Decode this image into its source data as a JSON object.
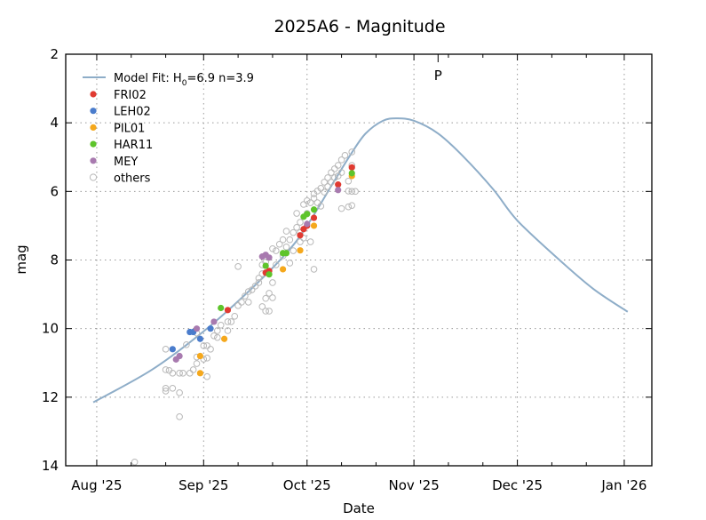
{
  "chart_data": {
    "type": "scatter",
    "title": "2025A6 - Magnitude",
    "xlabel": "Date",
    "ylabel": "mag",
    "xlim": [
      "2025-07-23",
      "2026-01-09"
    ],
    "ylim": [
      14,
      2
    ],
    "y_inverted": true,
    "grid": true,
    "legend_position": "top-left",
    "x_ticks": [
      {
        "date": "2025-08-01",
        "label": "Aug '25"
      },
      {
        "date": "2025-09-01",
        "label": "Sep '25"
      },
      {
        "date": "2025-10-01",
        "label": "Oct '25"
      },
      {
        "date": "2025-11-01",
        "label": "Nov '25"
      },
      {
        "date": "2025-12-01",
        "label": "Dec '25"
      },
      {
        "date": "2026-01-01",
        "label": "Jan '26"
      }
    ],
    "y_ticks": [
      {
        "value": 2,
        "label": "2"
      },
      {
        "value": 4,
        "label": "4"
      },
      {
        "value": 6,
        "label": "6"
      },
      {
        "value": 8,
        "label": "8"
      },
      {
        "value": 10,
        "label": "10"
      },
      {
        "value": 12,
        "label": "12"
      },
      {
        "value": 14,
        "label": "14"
      }
    ],
    "perihelion": {
      "date": "2025-11-08",
      "label": "P"
    },
    "model": {
      "label_prefix": "Model Fit: H",
      "label_sub": "0",
      "label_suffix": "=6.9 n=3.9",
      "color": "#8eadc8",
      "points": [
        [
          "2025-07-31",
          12.15
        ],
        [
          "2025-08-17",
          11.2
        ],
        [
          "2025-09-01",
          10.08
        ],
        [
          "2025-09-14",
          8.92
        ],
        [
          "2025-09-25",
          7.8
        ],
        [
          "2025-10-01",
          7.0
        ],
        [
          "2025-10-09",
          5.68
        ],
        [
          "2025-10-14",
          4.87
        ],
        [
          "2025-10-18",
          4.31
        ],
        [
          "2025-10-23",
          3.94
        ],
        [
          "2025-10-27",
          3.87
        ],
        [
          "2025-11-01",
          3.94
        ],
        [
          "2025-11-08",
          4.31
        ],
        [
          "2025-11-15",
          4.95
        ],
        [
          "2025-11-24",
          5.94
        ],
        [
          "2025-12-01",
          6.85
        ],
        [
          "2025-12-13",
          7.98
        ],
        [
          "2025-12-23",
          8.84
        ],
        [
          "2026-01-02",
          9.51
        ]
      ]
    },
    "series": [
      {
        "name": "FRI02",
        "color": "#e03a31",
        "filled": true,
        "points": [
          [
            "2025-09-08",
            9.46
          ],
          [
            "2025-09-19",
            8.37
          ],
          [
            "2025-09-20",
            8.32
          ],
          [
            "2025-09-29",
            7.28
          ],
          [
            "2025-09-30",
            7.1
          ],
          [
            "2025-10-01",
            7.0
          ],
          [
            "2025-10-03",
            6.77
          ],
          [
            "2025-10-10",
            5.8
          ],
          [
            "2025-10-14",
            5.3
          ]
        ]
      },
      {
        "name": "LEH02",
        "color": "#4a7ccc",
        "filled": true,
        "points": [
          [
            "2025-08-23",
            10.6
          ],
          [
            "2025-08-28",
            10.1
          ],
          [
            "2025-08-29",
            10.1
          ],
          [
            "2025-08-31",
            10.3
          ],
          [
            "2025-09-03",
            10.0
          ]
        ]
      },
      {
        "name": "PIL01",
        "color": "#f5a81c",
        "filled": true,
        "points": [
          [
            "2025-08-31",
            11.3
          ],
          [
            "2025-08-31",
            10.8
          ],
          [
            "2025-09-07",
            10.3
          ],
          [
            "2025-09-24",
            8.27
          ],
          [
            "2025-09-29",
            7.72
          ],
          [
            "2025-10-03",
            7.0
          ],
          [
            "2025-10-14",
            5.55
          ]
        ]
      },
      {
        "name": "HAR11",
        "color": "#5ec42b",
        "filled": true,
        "points": [
          [
            "2025-09-06",
            9.4
          ],
          [
            "2025-09-19",
            8.17
          ],
          [
            "2025-09-20",
            8.42
          ],
          [
            "2025-09-24",
            7.8
          ],
          [
            "2025-09-25",
            7.8
          ],
          [
            "2025-09-30",
            6.74
          ],
          [
            "2025-10-01",
            6.66
          ],
          [
            "2025-10-03",
            6.53
          ],
          [
            "2025-10-14",
            5.47
          ]
        ]
      },
      {
        "name": "MEY",
        "color": "#a87aaf",
        "filled": true,
        "points": [
          [
            "2025-08-24",
            10.9
          ],
          [
            "2025-08-25",
            10.8
          ],
          [
            "2025-08-30",
            10.0
          ],
          [
            "2025-09-04",
            9.8
          ],
          [
            "2025-09-18",
            7.9
          ],
          [
            "2025-09-19",
            7.85
          ],
          [
            "2025-09-20",
            7.93
          ],
          [
            "2025-10-01",
            6.95
          ],
          [
            "2025-10-10",
            5.96
          ]
        ]
      },
      {
        "name": "others",
        "color": "#b8b8b8",
        "filled": false,
        "points": [
          [
            "2025-08-12",
            13.89
          ],
          [
            "2025-08-21",
            10.6
          ],
          [
            "2025-08-21",
            11.2
          ],
          [
            "2025-08-21",
            11.74
          ],
          [
            "2025-08-21",
            11.82
          ],
          [
            "2025-08-22",
            11.22
          ],
          [
            "2025-08-23",
            11.3
          ],
          [
            "2025-08-23",
            11.74
          ],
          [
            "2025-08-25",
            11.3
          ],
          [
            "2025-08-25",
            11.87
          ],
          [
            "2025-08-25",
            12.57
          ],
          [
            "2025-08-26",
            11.3
          ],
          [
            "2025-08-27",
            10.47
          ],
          [
            "2025-08-28",
            11.3
          ],
          [
            "2025-08-29",
            11.2
          ],
          [
            "2025-08-30",
            10.83
          ],
          [
            "2025-08-30",
            11.02
          ],
          [
            "2025-08-30",
            10.13
          ],
          [
            "2025-09-01",
            10.89
          ],
          [
            "2025-09-01",
            10.5
          ],
          [
            "2025-09-02",
            10.86
          ],
          [
            "2025-09-02",
            10.5
          ],
          [
            "2025-09-02",
            11.4
          ],
          [
            "2025-09-03",
            10.6
          ],
          [
            "2025-09-04",
            10.21
          ],
          [
            "2025-09-05",
            10.06
          ],
          [
            "2025-09-05",
            10.26
          ],
          [
            "2025-09-06",
            9.9
          ],
          [
            "2025-09-08",
            9.8
          ],
          [
            "2025-09-08",
            10.06
          ],
          [
            "2025-09-09",
            9.8
          ],
          [
            "2025-09-10",
            9.64
          ],
          [
            "2025-09-11",
            9.33
          ],
          [
            "2025-09-11",
            8.19
          ],
          [
            "2025-09-12",
            9.23
          ],
          [
            "2025-09-13",
            9.05
          ],
          [
            "2025-09-14",
            9.23
          ],
          [
            "2025-09-14",
            8.92
          ],
          [
            "2025-09-15",
            8.87
          ],
          [
            "2025-09-16",
            8.76
          ],
          [
            "2025-09-17",
            8.53
          ],
          [
            "2025-09-17",
            8.66
          ],
          [
            "2025-09-18",
            8.4
          ],
          [
            "2025-09-18",
            8.14
          ],
          [
            "2025-09-18",
            9.36
          ],
          [
            "2025-09-19",
            8.06
          ],
          [
            "2025-09-19",
            9.49
          ],
          [
            "2025-09-19",
            9.12
          ],
          [
            "2025-09-20",
            9.49
          ],
          [
            "2025-09-20",
            8.97
          ],
          [
            "2025-09-21",
            7.67
          ],
          [
            "2025-09-21",
            9.1
          ],
          [
            "2025-09-21",
            8.66
          ],
          [
            "2025-09-22",
            7.73
          ],
          [
            "2025-09-22",
            8.14
          ],
          [
            "2025-09-23",
            7.54
          ],
          [
            "2025-09-24",
            7.41
          ],
          [
            "2025-09-24",
            7.88
          ],
          [
            "2025-09-25",
            7.62
          ],
          [
            "2025-09-25",
            7.16
          ],
          [
            "2025-09-26",
            8.09
          ],
          [
            "2025-09-26",
            7.41
          ],
          [
            "2025-09-27",
            7.2
          ],
          [
            "2025-09-27",
            7.73
          ],
          [
            "2025-09-28",
            7.05
          ],
          [
            "2025-09-28",
            6.64
          ],
          [
            "2025-09-29",
            7.2
          ],
          [
            "2025-09-29",
            6.9
          ],
          [
            "2025-09-29",
            7.47
          ],
          [
            "2025-09-30",
            6.38
          ],
          [
            "2025-09-30",
            7.36
          ],
          [
            "2025-10-01",
            6.27
          ],
          [
            "2025-10-01",
            6.64
          ],
          [
            "2025-10-02",
            6.33
          ],
          [
            "2025-10-02",
            7.47
          ],
          [
            "2025-10-03",
            8.27
          ],
          [
            "2025-10-03",
            6.2
          ],
          [
            "2025-10-03",
            6.07
          ],
          [
            "2025-10-04",
            6.33
          ],
          [
            "2025-10-04",
            5.99
          ],
          [
            "2025-10-05",
            6.43
          ],
          [
            "2025-10-05",
            5.91
          ],
          [
            "2025-10-06",
            5.73
          ],
          [
            "2025-10-06",
            6.02
          ],
          [
            "2025-10-07",
            5.6
          ],
          [
            "2025-10-07",
            5.86
          ],
          [
            "2025-10-08",
            5.45
          ],
          [
            "2025-10-08",
            5.73
          ],
          [
            "2025-10-09",
            5.34
          ],
          [
            "2025-10-09",
            5.6
          ],
          [
            "2025-10-10",
            5.24
          ],
          [
            "2025-10-10",
            5.55
          ],
          [
            "2025-10-11",
            5.08
          ],
          [
            "2025-10-11",
            5.45
          ],
          [
            "2025-10-11",
            6.5
          ],
          [
            "2025-10-12",
            4.95
          ],
          [
            "2025-10-13",
            6.45
          ],
          [
            "2025-10-13",
            5.99
          ],
          [
            "2025-10-13",
            5.7
          ],
          [
            "2025-10-14",
            4.85
          ],
          [
            "2025-10-14",
            5.24
          ],
          [
            "2025-10-14",
            6.0
          ],
          [
            "2025-10-15",
            6.0
          ],
          [
            "2025-10-14",
            6.41
          ]
        ]
      }
    ]
  }
}
